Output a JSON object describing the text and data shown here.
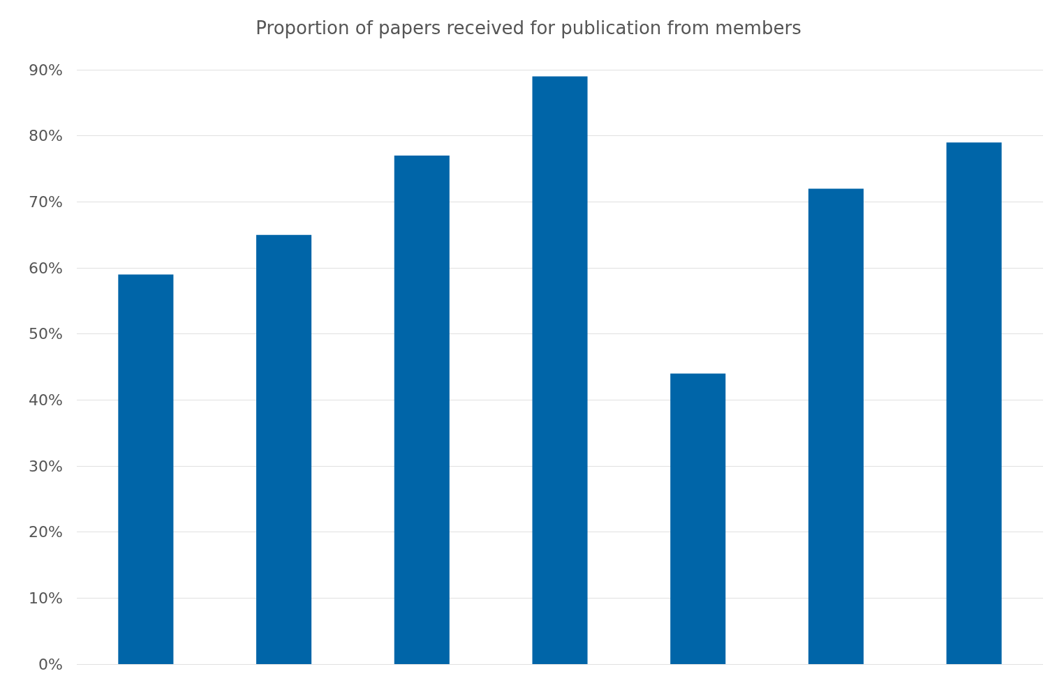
{
  "chart_data": {
    "type": "bar",
    "title": "Proportion of papers received for publication from members",
    "categories": [
      null,
      null,
      null,
      null,
      null,
      null,
      null
    ],
    "values": [
      59,
      65,
      77,
      89,
      44,
      72,
      79
    ],
    "color": "#0065a8",
    "ylim": [
      0,
      90
    ],
    "yticks": [
      {
        "value": 0,
        "label": "0%"
      },
      {
        "value": 10,
        "label": "10%"
      },
      {
        "value": 20,
        "label": "20%"
      },
      {
        "value": 30,
        "label": "30%"
      },
      {
        "value": 40,
        "label": "40%"
      },
      {
        "value": 50,
        "label": "50%"
      },
      {
        "value": 60,
        "label": "60%"
      },
      {
        "value": 70,
        "label": "70%"
      },
      {
        "value": 80,
        "label": "80%"
      },
      {
        "value": 90,
        "label": "90%"
      }
    ],
    "grid": "y"
  }
}
